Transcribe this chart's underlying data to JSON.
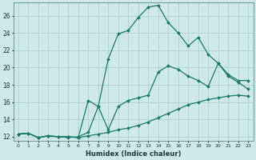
{
  "xlabel": "Humidex (Indice chaleur)",
  "ylabel": "",
  "background_color": "#cfe8e8",
  "grid_color": "#a8cccc",
  "line_color": "#1a7a6a",
  "xlim": [
    -0.5,
    23.5
  ],
  "ylim": [
    11.5,
    27.5
  ],
  "xticks": [
    0,
    1,
    2,
    3,
    4,
    5,
    6,
    7,
    8,
    9,
    10,
    11,
    12,
    13,
    14,
    15,
    16,
    17,
    18,
    19,
    20,
    21,
    22,
    23
  ],
  "yticks": [
    12,
    14,
    16,
    18,
    20,
    22,
    24,
    26
  ],
  "line1_x": [
    0,
    1,
    2,
    3,
    4,
    5,
    6,
    7,
    8,
    9,
    10,
    11,
    12,
    13,
    14,
    15,
    16,
    17,
    18,
    19,
    20,
    21,
    22,
    23
  ],
  "line1_y": [
    12.3,
    12.4,
    11.9,
    12.1,
    12.0,
    11.9,
    12.0,
    12.5,
    15.5,
    21.0,
    23.9,
    24.3,
    25.8,
    27.0,
    27.2,
    25.2,
    24.0,
    22.5,
    23.5,
    21.5,
    20.5,
    19.0,
    18.3,
    17.5
  ],
  "line2_x": [
    0,
    1,
    2,
    3,
    4,
    5,
    6,
    7,
    8,
    9,
    10,
    11,
    12,
    13,
    14,
    15,
    16,
    17,
    18,
    19,
    20,
    21,
    22,
    23
  ],
  "line2_y": [
    12.3,
    12.4,
    11.9,
    12.1,
    12.0,
    12.0,
    11.9,
    16.2,
    15.5,
    12.8,
    15.5,
    16.2,
    16.5,
    16.8,
    19.5,
    20.2,
    19.8,
    19.0,
    18.5,
    17.8,
    20.5,
    19.2,
    18.5,
    18.5
  ],
  "line3_x": [
    0,
    1,
    2,
    3,
    4,
    5,
    6,
    7,
    8,
    9,
    10,
    11,
    12,
    13,
    14,
    15,
    16,
    17,
    18,
    19,
    20,
    21,
    22,
    23
  ],
  "line3_y": [
    12.3,
    12.4,
    11.9,
    12.1,
    12.0,
    12.0,
    11.9,
    12.1,
    12.3,
    12.5,
    12.8,
    13.0,
    13.3,
    13.7,
    14.2,
    14.7,
    15.2,
    15.7,
    16.0,
    16.3,
    16.5,
    16.7,
    16.8,
    16.7
  ]
}
